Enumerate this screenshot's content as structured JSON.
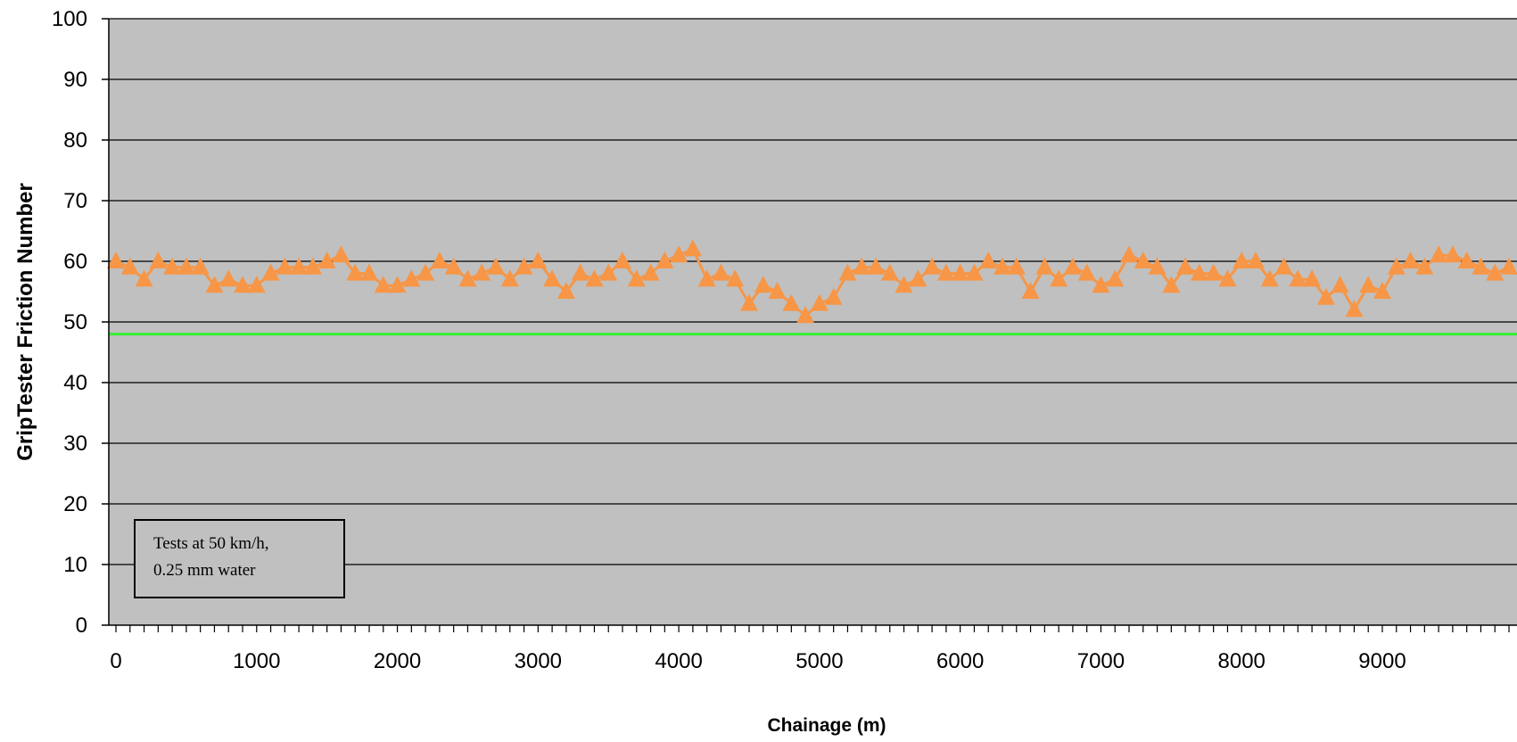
{
  "chart_data": {
    "type": "line",
    "xlabel": "Chainage (m)",
    "ylabel": "GripTester Friction Number",
    "xlim": [
      0,
      9900
    ],
    "ylim": [
      0,
      100
    ],
    "x_ticks": [
      "0",
      "1000",
      "2000",
      "3000",
      "4000",
      "5000",
      "6000",
      "7000",
      "8000",
      "9000"
    ],
    "y_ticks": [
      "0",
      "10",
      "20",
      "30",
      "40",
      "50",
      "60",
      "70",
      "80",
      "90",
      "100"
    ],
    "x_tick_values": [
      0,
      1000,
      2000,
      3000,
      4000,
      5000,
      6000,
      7000,
      8000,
      9000
    ],
    "y_tick_values": [
      0,
      10,
      20,
      30,
      40,
      50,
      60,
      70,
      80,
      90,
      100
    ],
    "minor_tick_step": 100,
    "grid": "horizontal",
    "plot_background": "#c0c0c0",
    "annotation": [
      "Tests at 50 km/h,",
      "0.25 mm water"
    ],
    "series": [
      {
        "marker": "triangle",
        "color": "#f79646",
        "x": [
          0,
          100,
          200,
          300,
          400,
          500,
          600,
          700,
          800,
          900,
          1000,
          1100,
          1200,
          1300,
          1400,
          1500,
          1600,
          1700,
          1800,
          1900,
          2000,
          2100,
          2200,
          2300,
          2400,
          2500,
          2600,
          2700,
          2800,
          2900,
          3000,
          3100,
          3200,
          3300,
          3400,
          3500,
          3600,
          3700,
          3800,
          3900,
          4000,
          4100,
          4200,
          4300,
          4400,
          4500,
          4600,
          4700,
          4800,
          4900,
          5000,
          5100,
          5200,
          5300,
          5400,
          5500,
          5600,
          5700,
          5800,
          5900,
          6000,
          6100,
          6200,
          6300,
          6400,
          6500,
          6600,
          6700,
          6800,
          6900,
          7000,
          7100,
          7200,
          7300,
          7400,
          7500,
          7600,
          7700,
          7800,
          7900,
          8000,
          8100,
          8200,
          8300,
          8400,
          8500,
          8600,
          8700,
          8800,
          8900,
          9000,
          9100,
          9200,
          9300,
          9400,
          9500,
          9600,
          9700,
          9800,
          9900
        ],
        "y": [
          60,
          59,
          57,
          60,
          59,
          59,
          59,
          56,
          57,
          56,
          56,
          58,
          59,
          59,
          59,
          60,
          61,
          58,
          58,
          56,
          56,
          57,
          58,
          60,
          59,
          57,
          58,
          59,
          57,
          59,
          60,
          57,
          55,
          58,
          57,
          58,
          60,
          57,
          58,
          60,
          61,
          62,
          57,
          58,
          57,
          53,
          56,
          55,
          53,
          51,
          53,
          54,
          58,
          59,
          59,
          58,
          56,
          57,
          59,
          58,
          58,
          58,
          60,
          59,
          59,
          55,
          59,
          57,
          59,
          58,
          56,
          57,
          61,
          60,
          59,
          56,
          59,
          58,
          58,
          57,
          60,
          60,
          57,
          59,
          57,
          57,
          54,
          56,
          52,
          56,
          55,
          59,
          60,
          59,
          61,
          61,
          60,
          59,
          58,
          59
        ]
      },
      {
        "type": "threshold-line",
        "color": "#33ee33",
        "y": 48
      }
    ]
  }
}
